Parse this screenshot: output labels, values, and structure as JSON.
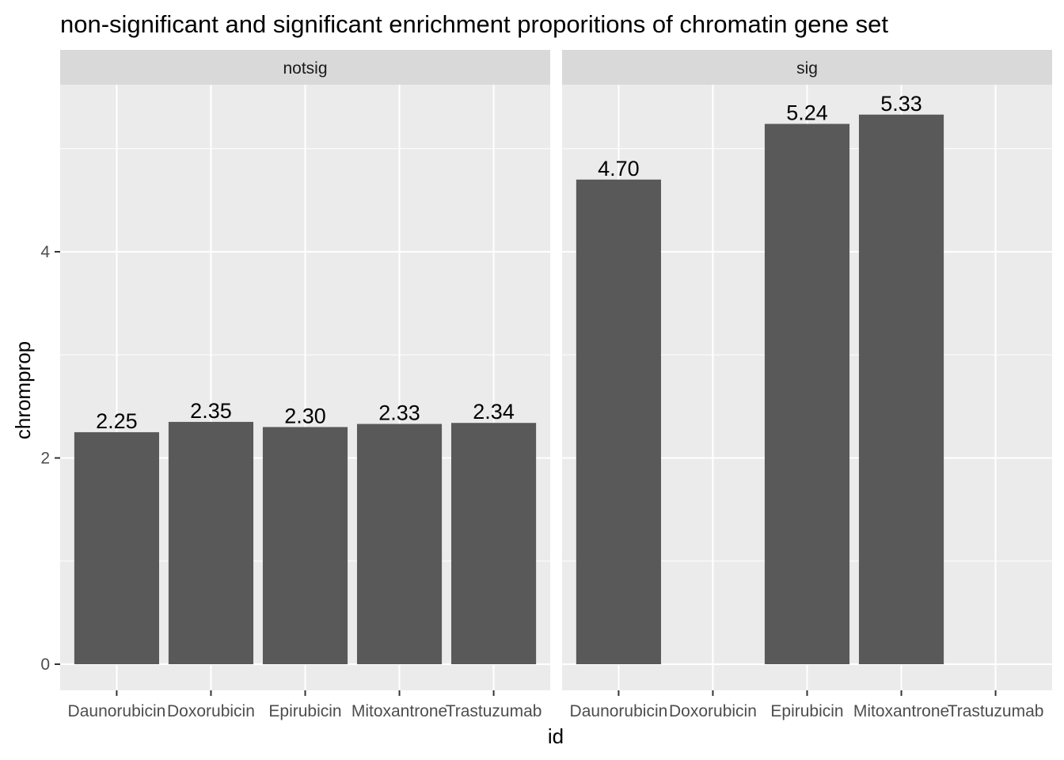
{
  "chart_data": {
    "type": "bar",
    "title": "non-significant and significant enrichment proporitions of chromatin gene set",
    "xlabel": "id",
    "ylabel": "chromprop",
    "categories": [
      "Daunorubicin",
      "Doxorubicin",
      "Epirubicin",
      "Mitoxantrone",
      "Trastuzumab"
    ],
    "ylim": [
      0,
      5.6
    ],
    "yticks": [
      0,
      2,
      4
    ],
    "grid": true,
    "bar_color": "#595959",
    "panel_background": "#ebebeb",
    "strip_background": "#d9d9d9",
    "facets": [
      {
        "name": "notsig",
        "values": [
          2.25,
          2.35,
          2.3,
          2.33,
          2.34
        ],
        "labels": [
          "2.25",
          "2.35",
          "2.30",
          "2.33",
          "2.34"
        ]
      },
      {
        "name": "sig",
        "values": [
          4.7,
          null,
          5.24,
          5.33,
          null
        ],
        "labels": [
          "4.70",
          null,
          "5.24",
          "5.33",
          null
        ]
      }
    ]
  }
}
